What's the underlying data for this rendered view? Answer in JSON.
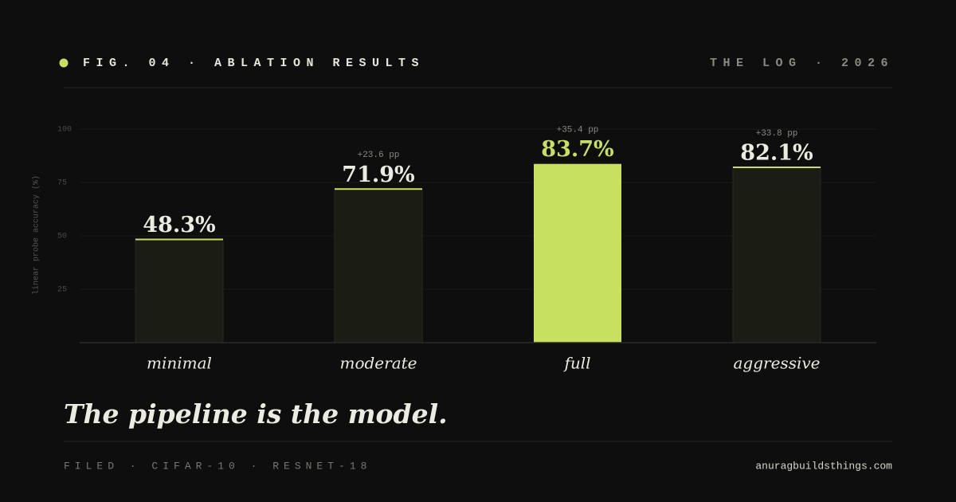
{
  "header": {
    "title": "FIG. 04 · ABLATION RESULTS",
    "right": "THE LOG · 2026"
  },
  "chart_data": {
    "type": "bar",
    "y_label": "linear probe accuracy (%)",
    "categories": [
      "minimal",
      "moderate",
      "full",
      "aggressive"
    ],
    "values": [
      48.3,
      71.9,
      83.7,
      82.1
    ],
    "value_labels": [
      "48.3%",
      "71.9%",
      "83.7%",
      "82.1%"
    ],
    "delta_labels": [
      null,
      "+23.6 pp",
      "+35.4 pp",
      "+33.8 pp"
    ],
    "colors": [
      "#1b1d15",
      "#1b1d15",
      "#c8e05f",
      "#1b1d15"
    ],
    "accent": "#c8e05f",
    "ylim": [
      0,
      100
    ],
    "yticks": [
      25,
      50,
      75,
      100
    ],
    "grid": true
  },
  "headline": "The pipeline is the model.",
  "footer": {
    "left": "FILED · CIFAR-10 · RESNET-18",
    "right": "anuragbuildsthings.com"
  }
}
